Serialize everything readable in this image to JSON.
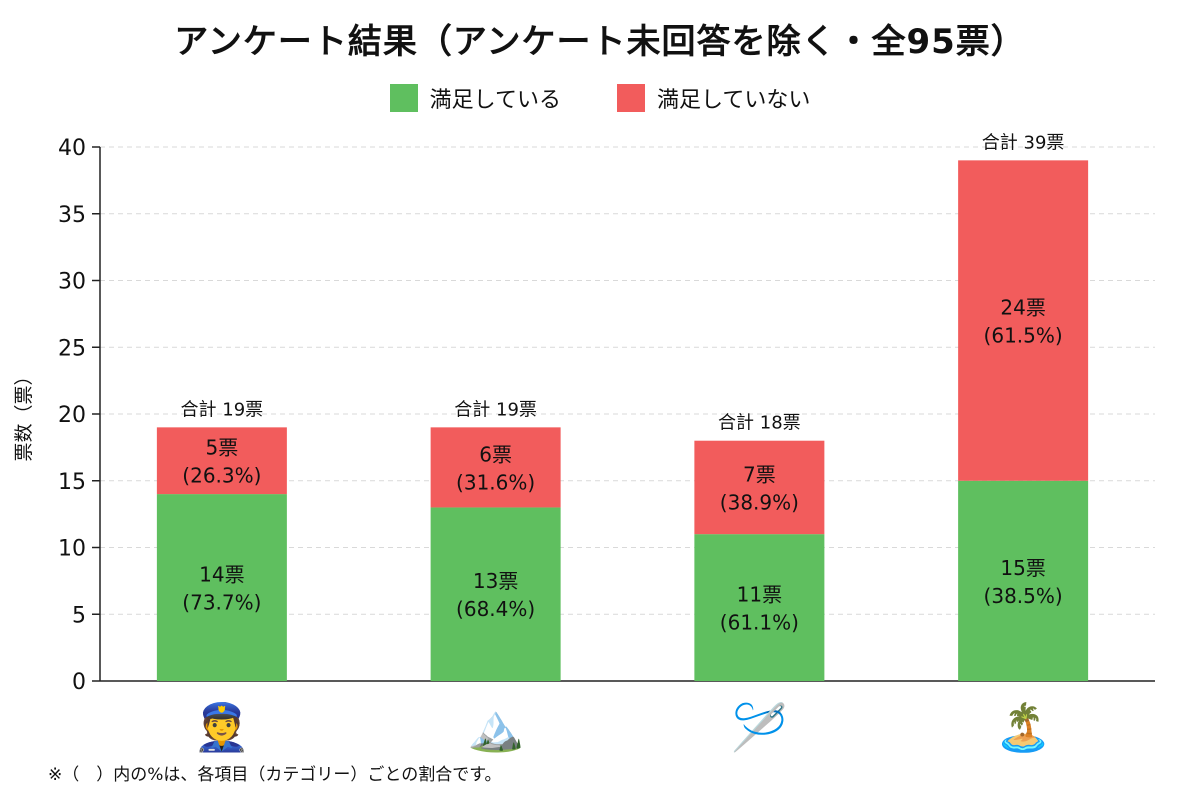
{
  "chart_data": {
    "type": "bar",
    "stacked": true,
    "title": "アンケート結果（アンケート未回答を除く・全95票）",
    "ylabel": "票数（票）",
    "ylim": [
      0,
      40
    ],
    "yticks": [
      0,
      5,
      10,
      15,
      20,
      25,
      30,
      35,
      40
    ],
    "grid": true,
    "legend_position": "top-center",
    "categories": [
      "👮",
      "🏔️",
      "🪡",
      "🏝️"
    ],
    "series": [
      {
        "name": "満足している",
        "color": "#5fbf5f",
        "values": [
          14,
          13,
          11,
          15
        ],
        "labels": [
          "14票",
          "13票",
          "11票",
          "15票"
        ],
        "percent_labels": [
          "(73.7%)",
          "(68.4%)",
          "(61.1%)",
          "(38.5%)"
        ]
      },
      {
        "name": "満足していない",
        "color": "#f25c5c",
        "values": [
          5,
          6,
          7,
          24
        ],
        "labels": [
          "5票",
          "6票",
          "7票",
          "24票"
        ],
        "percent_labels": [
          "(26.3%)",
          "(31.6%)",
          "(38.9%)",
          "(61.5%)"
        ]
      }
    ],
    "totals": [
      19,
      19,
      18,
      39
    ],
    "total_labels": [
      "合計 19票",
      "合計 19票",
      "合計 18票",
      "合計 39票"
    ]
  },
  "footnote": "※（　）内の%は、各項目（カテゴリー）ごとの割合です。"
}
